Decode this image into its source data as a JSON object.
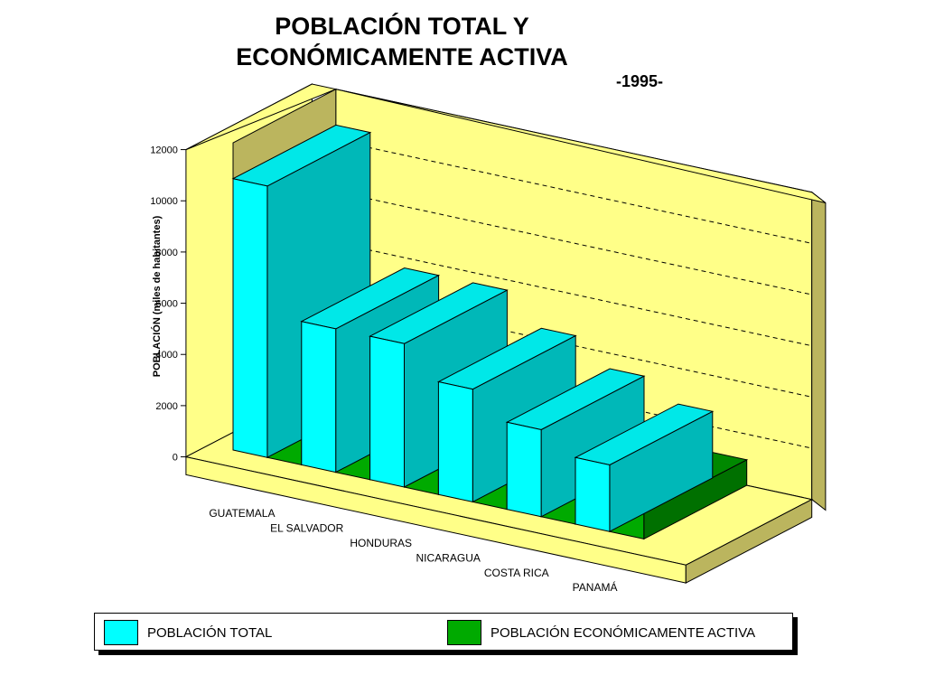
{
  "title_line1": "POBLACIÓN TOTAL Y",
  "title_line2": "ECONÓMICAMENTE ACTIVA",
  "subtitle": "-1995-",
  "colors": {
    "total_front": "#00ffff",
    "total_top": "#00e8e8",
    "total_side": "#00b8b8",
    "activa_front": "#00aa00",
    "activa_top": "#008800",
    "activa_side": "#007000",
    "wall_back": "#ffff88",
    "wall_side": "#bbb55e",
    "floor": "#ffff88"
  },
  "chart_data": {
    "type": "bar",
    "categories": [
      "GUATEMALA",
      "EL SALVADOR",
      "HONDURAS",
      "NICARAGUA",
      "COSTA RICA",
      "PANAMÁ"
    ],
    "series": [
      {
        "name": "POBLACIÓN TOTAL",
        "values": [
          10600,
          5600,
          5600,
          4400,
          3400,
          2600
        ]
      },
      {
        "name": "POBLACIÓN ECONÓMICAMENTE ACTIVA",
        "values": [
          2800,
          1700,
          1900,
          1200,
          1000,
          1000
        ]
      }
    ],
    "ylabel": "POBLACIÓN (miles de habitantes)",
    "yticks": [
      0,
      2000,
      4000,
      6000,
      8000,
      10000,
      12000
    ],
    "ylim": [
      0,
      12000
    ],
    "grid": true,
    "legend_position": "bottom"
  },
  "legend": {
    "total_label": "POBLACIÓN TOTAL",
    "activa_label": "POBLACIÓN ECONÓMICAMENTE ACTIVA"
  }
}
